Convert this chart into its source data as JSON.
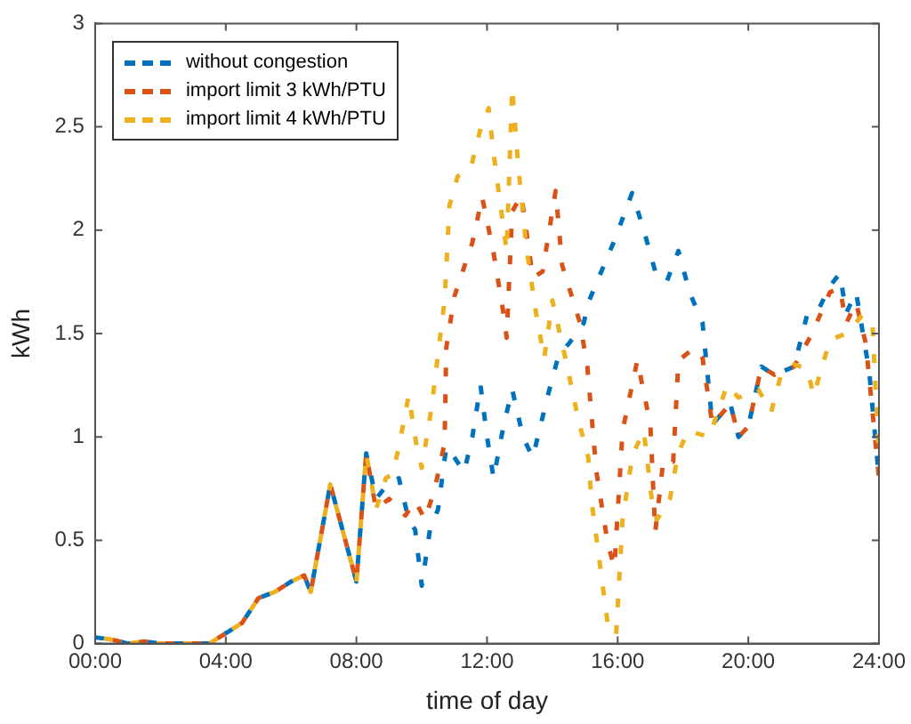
{
  "chart_data": {
    "type": "line",
    "xlabel": "time of day",
    "ylabel": "kWh",
    "xlim": [
      0,
      24
    ],
    "ylim": [
      0,
      3
    ],
    "xticks": [
      {
        "value": 0,
        "label": "00:00"
      },
      {
        "value": 4,
        "label": "04:00"
      },
      {
        "value": 8,
        "label": "08:00"
      },
      {
        "value": 12,
        "label": "12:00"
      },
      {
        "value": 16,
        "label": "16:00"
      },
      {
        "value": 20,
        "label": "20:00"
      },
      {
        "value": 24,
        "label": "24:00"
      }
    ],
    "yticks": [
      0,
      0.5,
      1,
      1.5,
      2,
      2.5,
      3
    ],
    "grid": false,
    "legend": "top left",
    "line_style": "dashed",
    "marker": "none",
    "series": [
      {
        "name": "without congestion",
        "color": "#0072bd",
        "x": [
          0,
          0.5,
          1,
          1.5,
          2,
          2.5,
          3,
          3.5,
          4,
          4.5,
          5,
          5.5,
          6,
          6.4,
          6.6,
          7.2,
          8.0,
          8.3,
          8.6,
          9.0,
          9.3,
          9.6,
          9.8,
          10.0,
          10.25,
          10.5,
          10.75,
          11.0,
          11.3,
          11.55,
          11.8,
          12.0,
          12.2,
          12.5,
          12.77,
          13.1,
          13.4,
          13.86,
          14.2,
          14.5,
          14.96,
          15.1,
          15.5,
          15.9,
          16.44,
          16.8,
          17.15,
          17.5,
          17.86,
          18.2,
          18.6,
          18.9,
          19.45,
          19.7,
          20.0,
          20.4,
          20.8,
          21.4,
          21.8,
          22.1,
          22.5,
          22.8,
          23.0,
          23.3,
          23.7,
          24.0
        ],
        "values": [
          0.03,
          0.02,
          0.0,
          0.01,
          0.0,
          0.0,
          0.0,
          0.0,
          0.05,
          0.1,
          0.22,
          0.25,
          0.3,
          0.33,
          0.25,
          0.77,
          0.3,
          0.92,
          0.7,
          0.78,
          0.8,
          0.6,
          0.55,
          0.28,
          0.55,
          0.65,
          0.95,
          0.9,
          0.83,
          1.0,
          1.25,
          1.0,
          0.8,
          1.05,
          1.23,
          1.0,
          0.9,
          1.2,
          1.4,
          1.45,
          1.55,
          1.65,
          1.8,
          1.95,
          2.18,
          2.0,
          1.8,
          1.75,
          1.9,
          1.7,
          1.55,
          1.06,
          1.16,
          1.0,
          1.05,
          1.34,
          1.3,
          1.34,
          1.59,
          1.6,
          1.73,
          1.79,
          1.6,
          1.7,
          1.32,
          0.8
        ]
      },
      {
        "name": "import limit 3 kWh/PTU",
        "color": "#d95319",
        "x": [
          0,
          0.5,
          1,
          1.5,
          2,
          2.5,
          3,
          3.5,
          4,
          4.5,
          5,
          5.5,
          6,
          6.4,
          6.6,
          7.2,
          8.0,
          8.3,
          8.6,
          9.0,
          9.5,
          9.8,
          10.1,
          10.4,
          10.7,
          10.75,
          11.0,
          11.55,
          11.85,
          12.2,
          12.5,
          12.6,
          12.77,
          13.05,
          13.4,
          13.7,
          14.1,
          14.3,
          14.85,
          15.07,
          15.35,
          15.7,
          15.9,
          16.15,
          16.6,
          17.0,
          17.15,
          17.4,
          17.7,
          17.86,
          18.35,
          18.6,
          18.9,
          19.45,
          19.7,
          20.0,
          20.4,
          20.8,
          21.4,
          21.95,
          22.5,
          22.8,
          23.0,
          23.3,
          23.6,
          24.0
        ],
        "values": [
          0.03,
          0.02,
          0.0,
          0.01,
          0.0,
          0.0,
          0.0,
          0.0,
          0.05,
          0.1,
          0.22,
          0.25,
          0.3,
          0.33,
          0.25,
          0.77,
          0.3,
          0.92,
          0.65,
          0.7,
          0.62,
          0.69,
          0.6,
          0.75,
          0.97,
          1.43,
          1.68,
          1.94,
          2.16,
          1.89,
          1.6,
          1.48,
          2.09,
          2.17,
          1.77,
          1.8,
          2.19,
          1.83,
          1.55,
          1.34,
          0.83,
          0.48,
          0.37,
          1.03,
          1.37,
          1.06,
          0.54,
          0.89,
          0.88,
          1.37,
          1.43,
          1.38,
          1.06,
          1.16,
          1.0,
          1.05,
          1.34,
          1.3,
          1.34,
          1.5,
          1.7,
          1.72,
          1.55,
          1.65,
          1.45,
          0.8
        ]
      },
      {
        "name": "import limit 4 kWh/PTU",
        "color": "#edb120",
        "x": [
          0,
          0.5,
          1,
          1.5,
          2,
          2.5,
          3,
          3.5,
          4,
          4.5,
          5,
          5.5,
          6,
          6.4,
          6.6,
          7.2,
          8.0,
          8.3,
          8.6,
          8.9,
          9.1,
          9.3,
          9.6,
          9.85,
          10.0,
          10.3,
          10.7,
          10.85,
          11.1,
          11.5,
          11.8,
          12.05,
          12.2,
          12.6,
          12.77,
          12.95,
          13.2,
          13.5,
          13.75,
          14.0,
          14.4,
          14.8,
          15.1,
          15.2,
          15.7,
          15.95,
          16.15,
          16.45,
          16.8,
          17.05,
          17.2,
          17.6,
          17.85,
          18.15,
          18.8,
          19.35,
          19.7,
          20.3,
          20.7,
          21.0,
          21.4,
          21.8,
          22.0,
          22.5,
          23.0,
          23.5,
          23.8,
          24.0
        ],
        "values": [
          0.03,
          0.02,
          0.0,
          0.01,
          0.0,
          0.0,
          0.0,
          0.0,
          0.05,
          0.1,
          0.22,
          0.25,
          0.3,
          0.33,
          0.25,
          0.77,
          0.3,
          0.92,
          0.65,
          0.8,
          0.82,
          0.95,
          1.2,
          0.95,
          0.85,
          1.14,
          1.66,
          2.12,
          2.26,
          2.3,
          2.49,
          2.59,
          2.37,
          1.9,
          2.69,
          2.32,
          1.92,
          1.6,
          1.38,
          1.66,
          1.38,
          1.08,
          0.9,
          0.69,
          0.09,
          0.04,
          0.6,
          0.91,
          1.03,
          0.69,
          0.6,
          0.7,
          0.92,
          1.03,
          1.0,
          1.25,
          1.19,
          1.23,
          1.12,
          1.3,
          1.35,
          1.33,
          1.2,
          1.47,
          1.5,
          1.59,
          1.55,
          0.9
        ]
      }
    ]
  }
}
